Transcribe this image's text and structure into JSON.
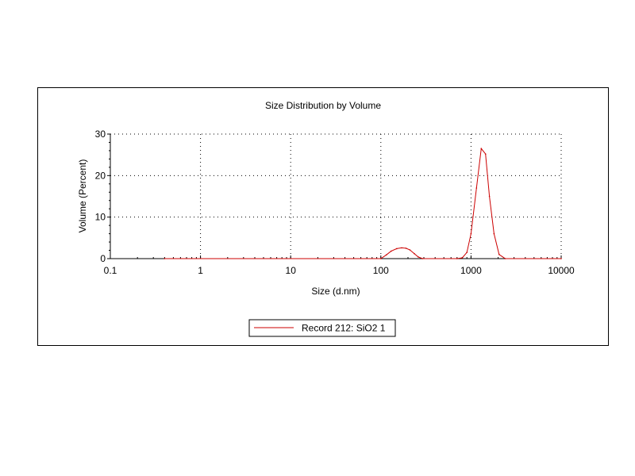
{
  "chart_data": {
    "type": "line",
    "title": "Size Distribution by Volume",
    "xlabel": "Size (d.nm)",
    "ylabel": "Volume (Percent)",
    "x_scale": "log",
    "xlim": [
      0.1,
      10000
    ],
    "ylim": [
      0,
      30
    ],
    "x_ticks": [
      0.1,
      1,
      10,
      100,
      1000,
      10000
    ],
    "x_tick_labels": [
      "0.1",
      "1",
      "10",
      "100",
      "1000",
      "10000"
    ],
    "y_ticks": [
      0,
      10,
      20,
      30
    ],
    "y_tick_labels": [
      "0",
      "10",
      "20",
      "30"
    ],
    "grid": true,
    "legend_position": "bottom-center",
    "series": [
      {
        "name": "Record 212: SiO2 1",
        "color": "#cc0000",
        "x": [
          0.4,
          100,
          115,
          130,
          150,
          170,
          190,
          210,
          235,
          260,
          290,
          700,
          800,
          900,
          1000,
          1150,
          1300,
          1450,
          1600,
          1800,
          2050,
          2400,
          10000
        ],
        "y": [
          0,
          0,
          0.9,
          1.8,
          2.4,
          2.6,
          2.5,
          2.1,
          1.2,
          0.4,
          0,
          0,
          0.2,
          1.5,
          6.0,
          17.0,
          26.5,
          25.2,
          15.0,
          6.0,
          1.0,
          0,
          0
        ]
      }
    ]
  }
}
